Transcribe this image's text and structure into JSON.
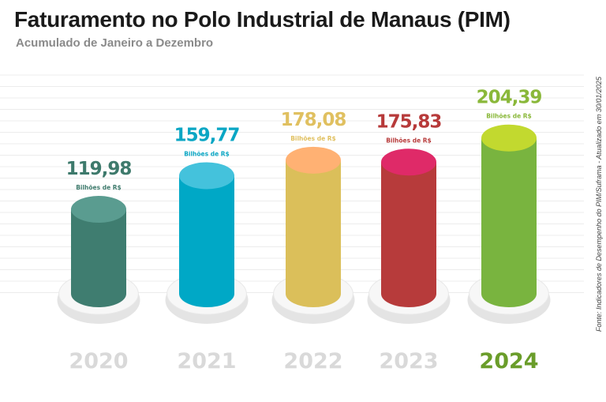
{
  "chart_data": {
    "type": "bar",
    "title": "Faturamento no Polo Industrial de Manaus (PIM)",
    "subtitle": "Acumulado de Janeiro a Dezembro",
    "source": "Fonte: Indicadores de Desempenho do PIM/Suframa - Atualizado em 30/01/2025",
    "unit_label": "Bilhões de R$",
    "categories": [
      "2020",
      "2021",
      "2022",
      "2023",
      "2024"
    ],
    "values": [
      119.98,
      159.77,
      178.08,
      175.83,
      204.39
    ],
    "value_labels": [
      "119,98",
      "159,77",
      "178,08",
      "175,83",
      "204,39"
    ],
    "highlight_category": "2024",
    "colors": {
      "body": [
        "#3f7d70",
        "#00a8c6",
        "#dbbf5a",
        "#b73b3b",
        "#79b43f"
      ],
      "top": [
        "#5a9c90",
        "#44c2dc",
        "#ffb173",
        "#df2a68",
        "#c2d92f"
      ],
      "label": [
        "#3e7a6c",
        "#0aa6c4",
        "#e0c060",
        "#b73a3a",
        "#8ab83a"
      ],
      "year": "#d9d9d9",
      "year_highlight": "#6a9d2a"
    },
    "grid": true
  }
}
